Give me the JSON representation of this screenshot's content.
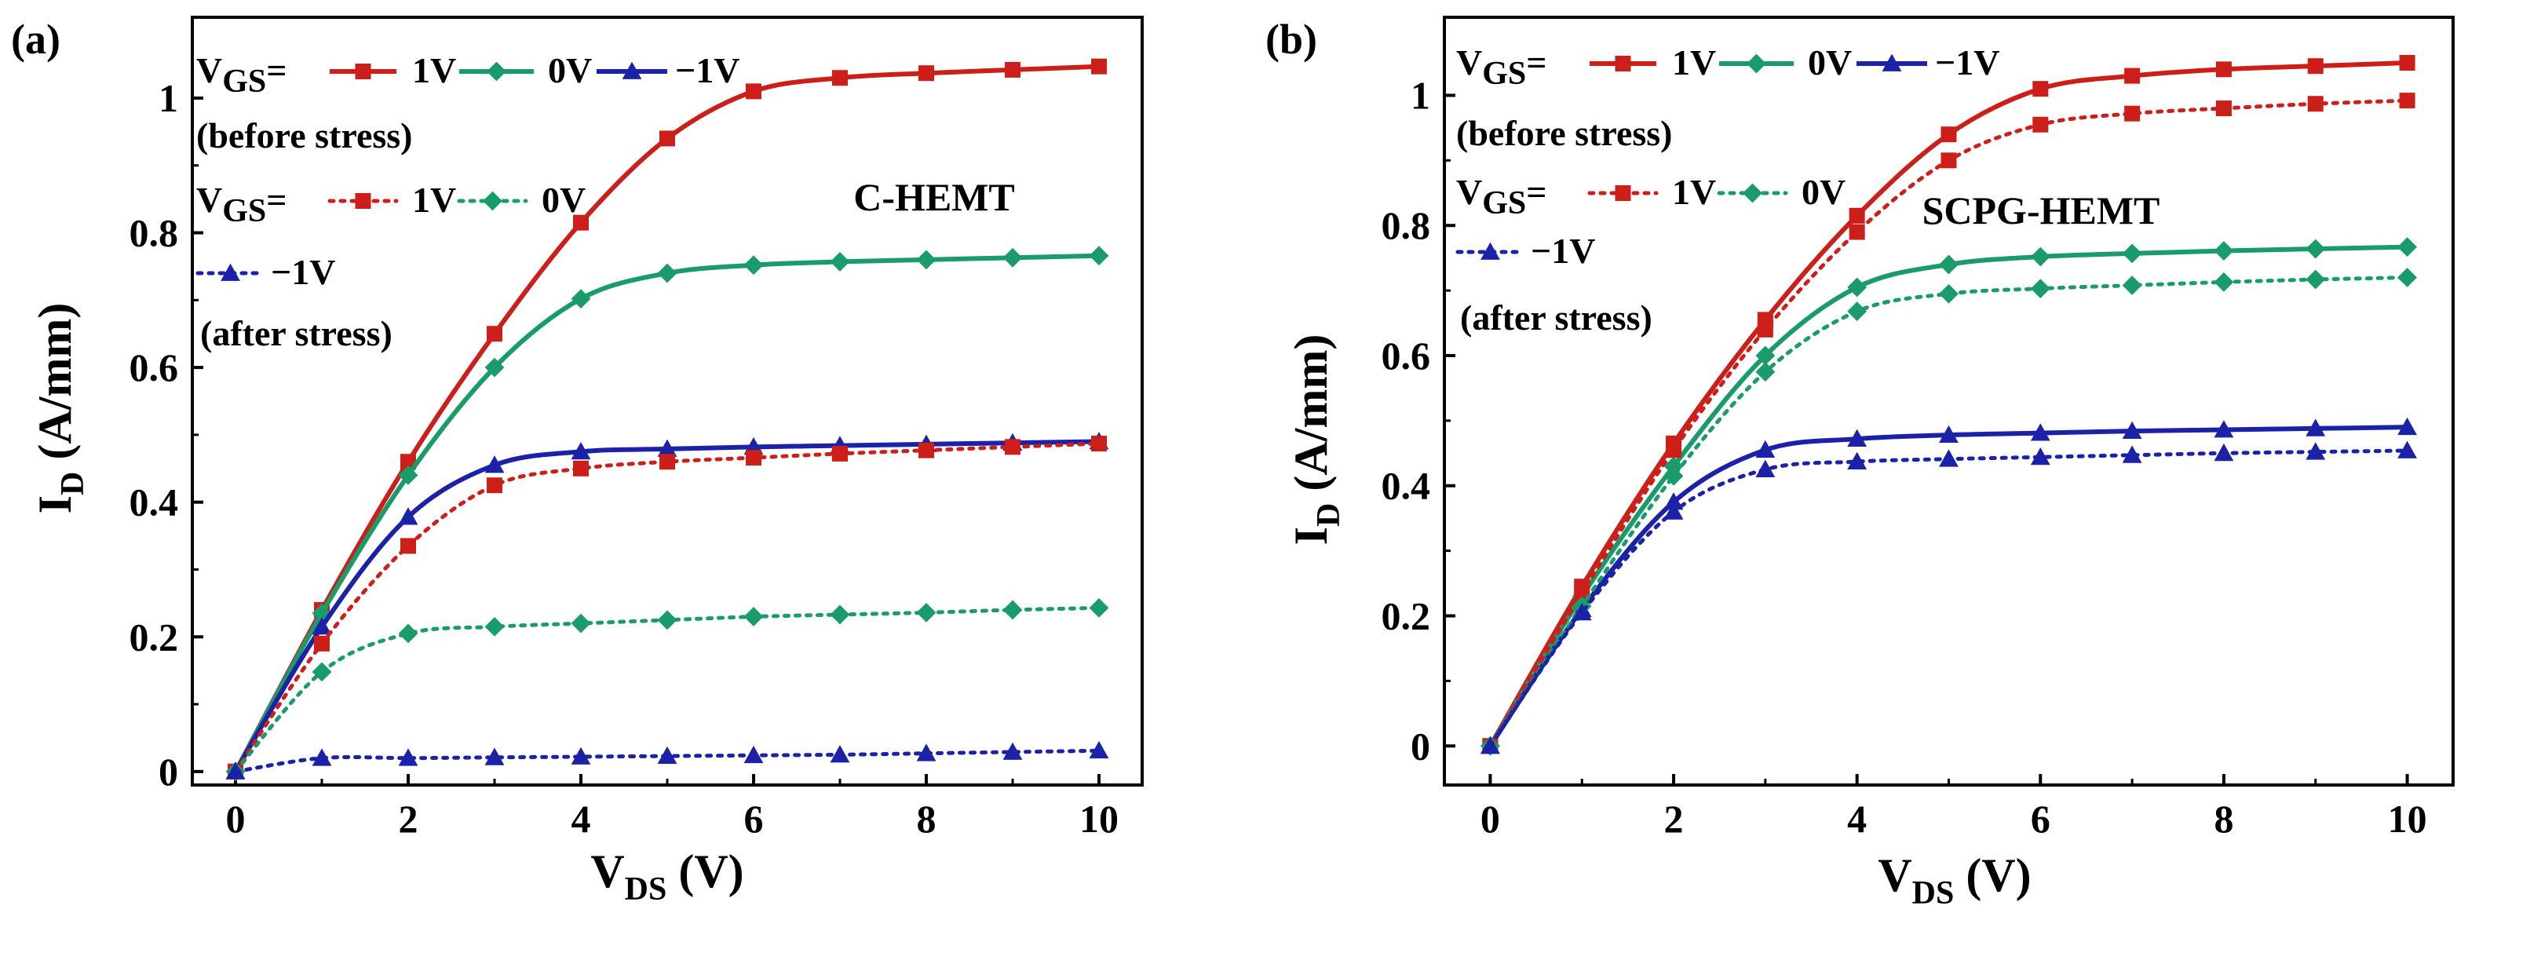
{
  "colors": {
    "red": "#cc1f1a",
    "green": "#1a9b6a",
    "blue": "#1c22a8",
    "axis": "#000000"
  },
  "chart_data": [
    {
      "type": "line",
      "panel": "(a)",
      "device": "C-HEMT",
      "xlabel": {
        "main": "V",
        "sub": "DS",
        "unit": " (V)"
      },
      "ylabel": {
        "main": "I",
        "sub": "D",
        "unit": " (A/mm)"
      },
      "xlim": [
        -0.5,
        10.5
      ],
      "ylim": [
        -0.02,
        1.12
      ],
      "xticks": [
        "0",
        "2",
        "4",
        "6",
        "8",
        "10"
      ],
      "yticks": [
        "0",
        "0.2",
        "0.4",
        "0.6",
        "0.8",
        "1"
      ],
      "legend": {
        "prefix": "V",
        "prefix_sub": "GS",
        "eq": "=",
        "before_label": "(before  stress)",
        "after_label": "(after  stress)",
        "v1": "1V",
        "v0": "0V",
        "vm1": "−1V"
      },
      "x": [
        0,
        1,
        2,
        3,
        4,
        5,
        6,
        7,
        8,
        9,
        10
      ],
      "series": [
        {
          "name": "1V (before stress)",
          "color": "red",
          "style": "solid",
          "marker": "square",
          "values": [
            0,
            0.24,
            0.46,
            0.65,
            0.815,
            0.94,
            1.01,
            1.03,
            1.037,
            1.042,
            1.047
          ]
        },
        {
          "name": "0V (before stress)",
          "color": "green",
          "style": "solid",
          "marker": "diamond",
          "values": [
            0,
            0.235,
            0.44,
            0.6,
            0.702,
            0.74,
            0.752,
            0.757,
            0.76,
            0.763,
            0.766
          ]
        },
        {
          "name": "-1V (before stress)",
          "color": "blue",
          "style": "solid",
          "marker": "triangle",
          "values": [
            0,
            0.215,
            0.378,
            0.455,
            0.475,
            0.479,
            0.482,
            0.484,
            0.486,
            0.488,
            0.49
          ]
        },
        {
          "name": "1V (after stress)",
          "color": "red",
          "style": "dotted",
          "marker": "square",
          "values": [
            0,
            0.19,
            0.335,
            0.425,
            0.45,
            0.46,
            0.466,
            0.472,
            0.477,
            0.482,
            0.487
          ]
        },
        {
          "name": "0V (after stress)",
          "color": "green",
          "style": "dotted",
          "marker": "diamond",
          "values": [
            0,
            0.148,
            0.205,
            0.215,
            0.22,
            0.225,
            0.23,
            0.233,
            0.236,
            0.24,
            0.243
          ]
        },
        {
          "name": "-1V (after stress)",
          "color": "blue",
          "style": "dotted",
          "marker": "triangle",
          "values": [
            0,
            0.02,
            0.02,
            0.021,
            0.022,
            0.023,
            0.024,
            0.025,
            0.027,
            0.029,
            0.031
          ]
        }
      ]
    },
    {
      "type": "line",
      "panel": "(b)",
      "device": "SCPG-HEMT",
      "xlabel": {
        "main": "V",
        "sub": "DS",
        "unit": " (V)"
      },
      "ylabel": {
        "main": "I",
        "sub": "D",
        "unit": " (A/mm)"
      },
      "xlim": [
        -0.5,
        10.5
      ],
      "ylim": [
        -0.06,
        1.12
      ],
      "xticks": [
        "0",
        "2",
        "4",
        "6",
        "8",
        "10"
      ],
      "yticks": [
        "0",
        "0.2",
        "0.4",
        "0.6",
        "0.8",
        "1"
      ],
      "legend": {
        "prefix": "V",
        "prefix_sub": "GS",
        "eq": "=",
        "before_label": "(before  stress)",
        "after_label": "(after  stress)",
        "v1": "1V",
        "v0": "0V",
        "vm1": "−1V"
      },
      "x": [
        0,
        1,
        2,
        3,
        4,
        5,
        6,
        7,
        8,
        9,
        10
      ],
      "series": [
        {
          "name": "1V (before stress)",
          "color": "red",
          "style": "solid",
          "marker": "square",
          "values": [
            0,
            0.245,
            0.465,
            0.655,
            0.815,
            0.94,
            1.01,
            1.03,
            1.04,
            1.045,
            1.05
          ]
        },
        {
          "name": "0V (before stress)",
          "color": "green",
          "style": "solid",
          "marker": "diamond",
          "values": [
            0,
            0.23,
            0.43,
            0.6,
            0.705,
            0.74,
            0.752,
            0.757,
            0.761,
            0.764,
            0.767
          ]
        },
        {
          "name": "-1V (before stress)",
          "color": "blue",
          "style": "solid",
          "marker": "triangle",
          "values": [
            0,
            0.21,
            0.375,
            0.455,
            0.472,
            0.478,
            0.481,
            0.484,
            0.486,
            0.488,
            0.49
          ]
        },
        {
          "name": "1V (after stress)",
          "color": "red",
          "style": "dotted",
          "marker": "square",
          "values": [
            0,
            0.235,
            0.455,
            0.64,
            0.79,
            0.9,
            0.955,
            0.972,
            0.98,
            0.987,
            0.992
          ]
        },
        {
          "name": "0V (after stress)",
          "color": "green",
          "style": "dotted",
          "marker": "diamond",
          "values": [
            0,
            0.215,
            0.415,
            0.575,
            0.668,
            0.695,
            0.703,
            0.708,
            0.713,
            0.717,
            0.72
          ]
        },
        {
          "name": "-1V (after stress)",
          "color": "blue",
          "style": "dotted",
          "marker": "triangle",
          "values": [
            0,
            0.205,
            0.36,
            0.425,
            0.437,
            0.441,
            0.444,
            0.447,
            0.45,
            0.452,
            0.454
          ]
        }
      ]
    }
  ]
}
